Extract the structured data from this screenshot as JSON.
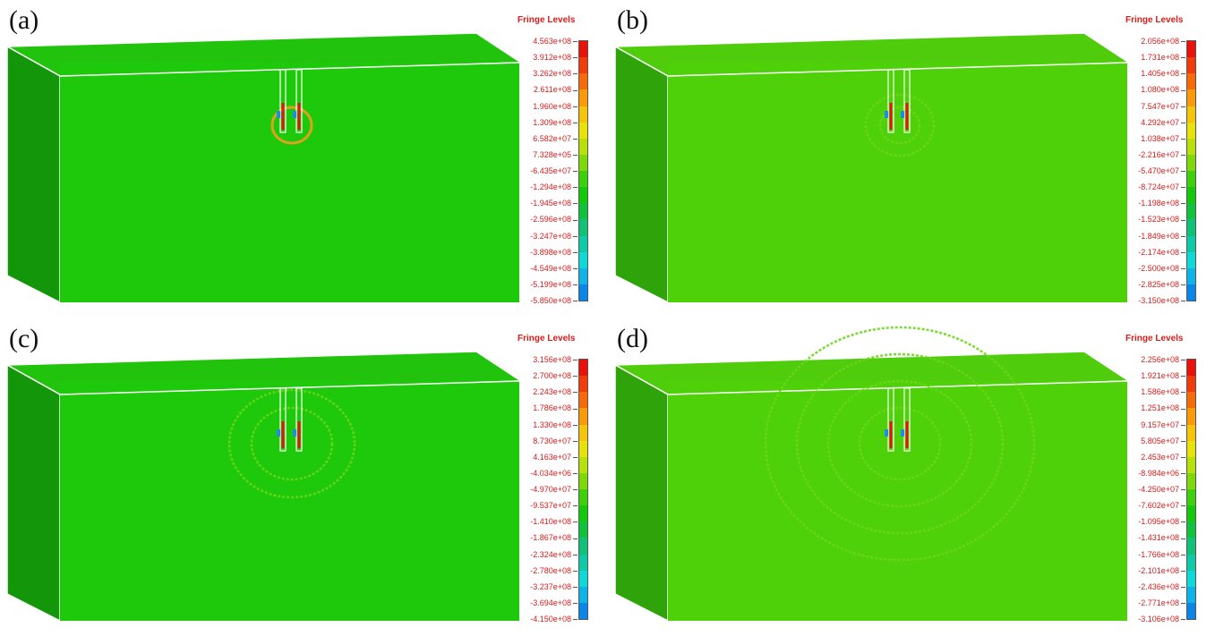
{
  "legend_title": "Fringe Levels",
  "colors": {
    "front_face": "#1ec80a",
    "front_face_alt": "#4fd10a",
    "side_face": "#14960a",
    "side_face_alt": "#2fa40a",
    "top_face": "#22c30c",
    "top_face_alt": "#4fcc0c",
    "wave": "#6ad61a",
    "scale": [
      "#e8120a",
      "#f03c0a",
      "#f76a0a",
      "#fa9a0a",
      "#f6c40a",
      "#e6e20a",
      "#b8e00a",
      "#7ed80a",
      "#3ed00a",
      "#14c80a",
      "#10c23c",
      "#0fc278",
      "#0ecaa6",
      "#0ed8d8",
      "#0eb4e8",
      "#0a86e8",
      "#0a56e8",
      "#0a22e8"
    ]
  },
  "panels": [
    {
      "label": "(a)",
      "legend": [
        "4.563e+08",
        "3.912e+08",
        "3.262e+08",
        "2.611e+08",
        "1.960e+08",
        "1.309e+08",
        "6.582e+07",
        "7.328e+05",
        "-6.435e+07",
        "-1.294e+08",
        "-1.945e+08",
        "-2.596e+08",
        "-3.247e+08",
        "-3.898e+08",
        "-4.549e+08",
        "-5.199e+08",
        "-5.850e+08"
      ]
    },
    {
      "label": "(b)",
      "legend": [
        "2.056e+08",
        "1.731e+08",
        "1.405e+08",
        "1.080e+08",
        "7.547e+07",
        "4.292e+07",
        "1.038e+07",
        "-2.216e+07",
        "-5.470e+07",
        "-8.724e+07",
        "-1.198e+08",
        "-1.523e+08",
        "-1.849e+08",
        "-2.174e+08",
        "-2.500e+08",
        "-2.825e+08",
        "-3.150e+08"
      ]
    },
    {
      "label": "(c)",
      "legend": [
        "3.156e+08",
        "2.700e+08",
        "2.243e+08",
        "1.786e+08",
        "1.330e+08",
        "8.730e+07",
        "4.163e+07",
        "-4.034e+06",
        "-4.970e+07",
        "-9.537e+07",
        "-1.410e+08",
        "-1.867e+08",
        "-2.324e+08",
        "-2.780e+08",
        "-3.237e+08",
        "-3.694e+08",
        "-4.150e+08"
      ]
    },
    {
      "label": "(d)",
      "legend": [
        "2.256e+08",
        "1.921e+08",
        "1.586e+08",
        "1.251e+08",
        "9.157e+07",
        "5.805e+07",
        "2.453e+07",
        "-8.984e+06",
        "-4.250e+07",
        "-7.602e+07",
        "-1.095e+08",
        "-1.431e+08",
        "-1.766e+08",
        "-2.101e+08",
        "-2.436e+08",
        "-2.771e+08",
        "-3.106e+08"
      ]
    }
  ]
}
